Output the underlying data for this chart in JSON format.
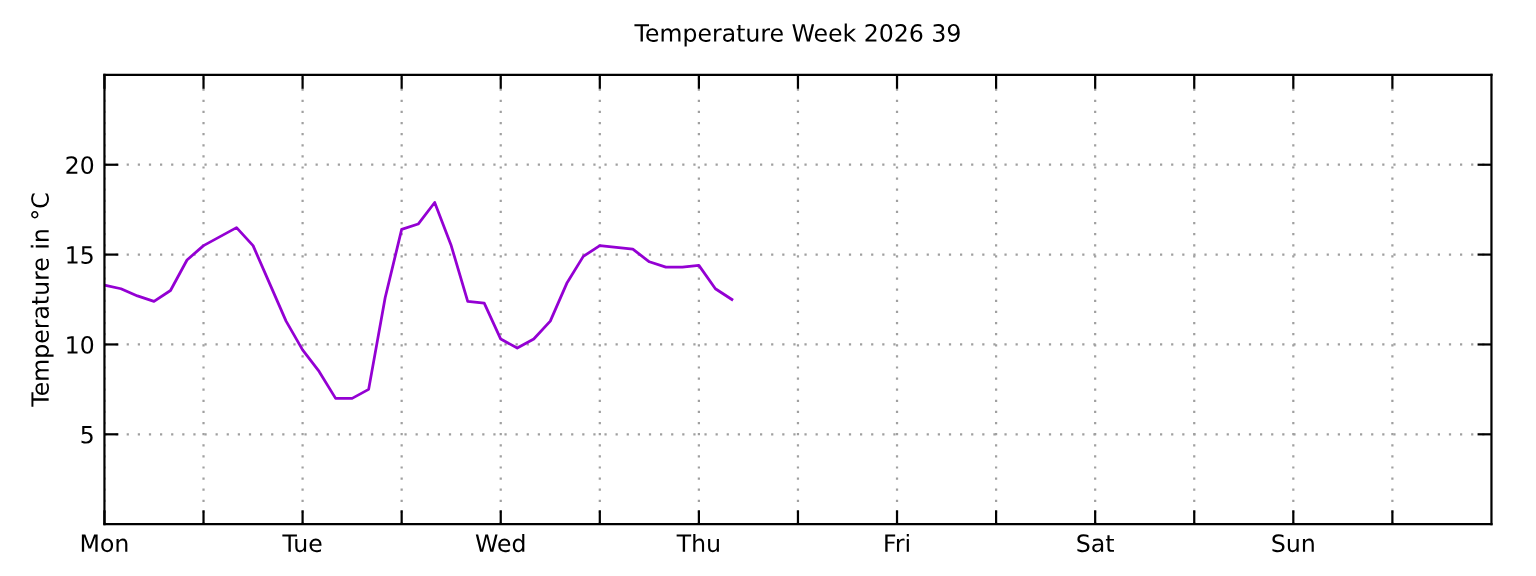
{
  "chart_data": {
    "type": "line",
    "title": "Temperature Week 2026 39",
    "ylabel": "Temperature in °C",
    "categories": [
      "Mon",
      null,
      null,
      null,
      null,
      null,
      null,
      null,
      null,
      null,
      null,
      null,
      "Tue",
      null,
      null,
      null,
      null,
      null,
      null,
      null,
      null,
      null,
      null,
      null,
      "Wed",
      null,
      null,
      null,
      null,
      null,
      null,
      null,
      null,
      null,
      null,
      null,
      "Thu",
      null,
      null,
      null,
      null,
      null,
      null,
      null,
      null,
      null,
      null,
      null,
      "Fri",
      null,
      null,
      null,
      null,
      null,
      null,
      null,
      null,
      null,
      null,
      null,
      "Sat",
      null,
      null,
      null,
      null,
      null,
      null,
      null,
      null,
      null,
      null,
      null,
      "Sun",
      null,
      null,
      null,
      null,
      null,
      null,
      null,
      null,
      null,
      null,
      null
    ],
    "ylim": [
      0,
      25
    ],
    "yticks": [
      5,
      10,
      15,
      20
    ],
    "grid": true,
    "marker": "none",
    "line_style": "solid",
    "series": [
      {
        "color": "#9400d3",
        "values": [
          13.3,
          13.1,
          12.7,
          12.4,
          13.0,
          14.7,
          15.5,
          16.0,
          16.5,
          15.5,
          13.4,
          11.3,
          9.7,
          8.5,
          7.0,
          7.0,
          7.5,
          12.6,
          16.4,
          16.7,
          17.9,
          15.5,
          12.4,
          12.3,
          10.3,
          9.8,
          10.3,
          11.3,
          13.4,
          14.9,
          15.5,
          15.4,
          15.3,
          14.6,
          14.3,
          14.3,
          14.4,
          13.1,
          12.5,
          null,
          null,
          null,
          null,
          null,
          null,
          null,
          null,
          null,
          null,
          null,
          null,
          null,
          null,
          null,
          null,
          null,
          null,
          null,
          null,
          null,
          null,
          null,
          null,
          null,
          null,
          null,
          null,
          null,
          null,
          null,
          null,
          null,
          null,
          null,
          null,
          null,
          null,
          null,
          null,
          null,
          null,
          null,
          null,
          null
        ]
      }
    ]
  }
}
